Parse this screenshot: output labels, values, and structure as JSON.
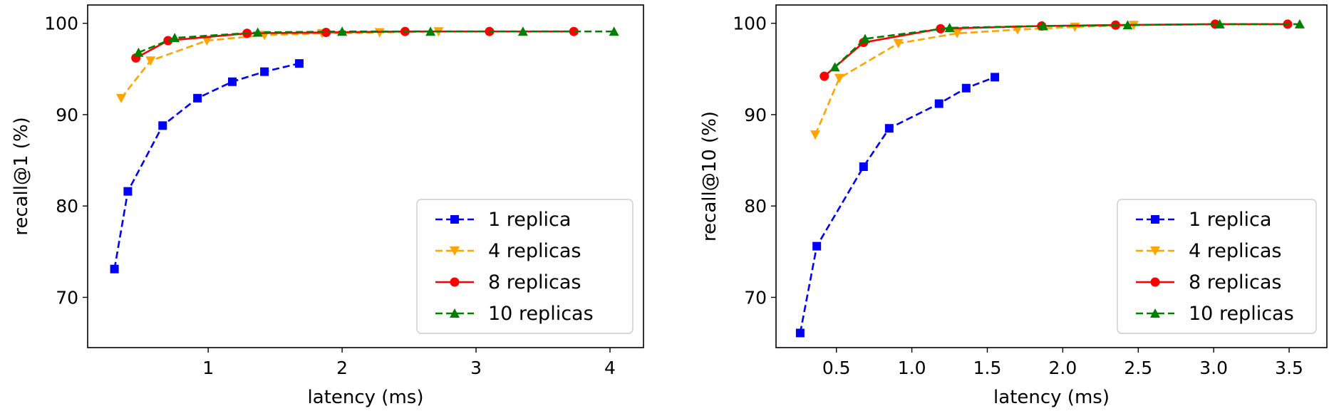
{
  "chart_data": [
    {
      "type": "line",
      "title": "",
      "xlabel": "latency (ms)",
      "ylabel": "recall@1 (%)",
      "xlim": [
        0.1,
        4.25
      ],
      "ylim": [
        64.5,
        102
      ],
      "xticks": [
        1,
        2,
        3,
        4
      ],
      "xtick_labels": [
        "1",
        "2",
        "3",
        "4"
      ],
      "yticks": [
        70,
        80,
        90,
        100
      ],
      "ytick_labels": [
        "70",
        "80",
        "90",
        "100"
      ],
      "grid": false,
      "legend_position": "lower-right",
      "series": [
        {
          "name": "1 replica",
          "color": "#0000ff",
          "marker": "square",
          "linestyle": "dashed",
          "x": [
            0.3,
            0.4,
            0.66,
            0.92,
            1.18,
            1.42,
            1.68
          ],
          "y": [
            73.1,
            81.6,
            88.8,
            91.8,
            93.6,
            94.7,
            95.6
          ]
        },
        {
          "name": "4 replicas",
          "color": "#ffa500",
          "marker": "triangle-down",
          "linestyle": "dashed",
          "x": [
            0.35,
            0.57,
            0.99,
            1.42,
            1.85,
            2.28,
            2.72
          ],
          "y": [
            91.8,
            95.9,
            98.1,
            98.7,
            98.9,
            99.0,
            99.1
          ]
        },
        {
          "name": "8 replicas",
          "color": "#ff0000",
          "marker": "circle",
          "linestyle": "solid",
          "x": [
            0.46,
            0.7,
            1.29,
            1.88,
            2.47,
            3.1,
            3.73
          ],
          "y": [
            96.2,
            98.1,
            98.9,
            99.0,
            99.1,
            99.1,
            99.1
          ]
        },
        {
          "name": "10 replicas",
          "color": "#008000",
          "marker": "triangle-up",
          "linestyle": "dashed",
          "x": [
            0.48,
            0.75,
            1.37,
            2.0,
            2.66,
            3.35,
            4.03
          ],
          "y": [
            96.8,
            98.4,
            99.0,
            99.1,
            99.1,
            99.1,
            99.1
          ]
        }
      ]
    },
    {
      "type": "line",
      "title": "",
      "xlabel": "latency (ms)",
      "ylabel": "recall@10 (%)",
      "xlim": [
        0.1,
        3.75
      ],
      "ylim": [
        64.5,
        102
      ],
      "xticks": [
        0.5,
        1.0,
        1.5,
        2.0,
        2.5,
        3.0,
        3.5
      ],
      "xtick_labels": [
        "0.5",
        "1.0",
        "1.5",
        "2.0",
        "2.5",
        "3.0",
        "3.5"
      ],
      "yticks": [
        70,
        80,
        90,
        100
      ],
      "ytick_labels": [
        "70",
        "80",
        "90",
        "100"
      ],
      "grid": false,
      "legend_position": "lower-right",
      "series": [
        {
          "name": "1 replica",
          "color": "#0000ff",
          "marker": "square",
          "linestyle": "dashed",
          "x": [
            0.26,
            0.37,
            0.68,
            0.85,
            1.18,
            1.36,
            1.55
          ],
          "y": [
            66.1,
            75.6,
            84.3,
            88.5,
            91.2,
            92.9,
            94.1
          ]
        },
        {
          "name": "4 replicas",
          "color": "#ffa500",
          "marker": "triangle-down",
          "linestyle": "dashed",
          "x": [
            0.36,
            0.52,
            0.91,
            1.3,
            1.7,
            2.08,
            2.47
          ],
          "y": [
            87.8,
            94.0,
            97.8,
            98.9,
            99.3,
            99.6,
            99.8
          ]
        },
        {
          "name": "8 replicas",
          "color": "#ff0000",
          "marker": "circle",
          "linestyle": "solid",
          "x": [
            0.42,
            0.68,
            1.19,
            1.86,
            2.35,
            3.01,
            3.49
          ],
          "y": [
            94.2,
            97.9,
            99.4,
            99.7,
            99.8,
            99.9,
            99.9
          ]
        },
        {
          "name": "10 replicas",
          "color": "#008000",
          "marker": "triangle-up",
          "linestyle": "dashed",
          "x": [
            0.49,
            0.69,
            1.25,
            1.87,
            2.43,
            3.04,
            3.57
          ],
          "y": [
            95.2,
            98.3,
            99.5,
            99.7,
            99.8,
            99.9,
            99.9
          ]
        }
      ]
    }
  ]
}
